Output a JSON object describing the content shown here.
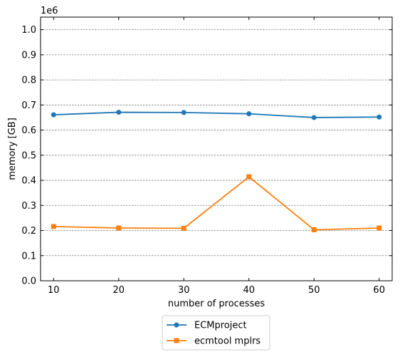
{
  "chart_data": {
    "type": "line",
    "xlabel": "number of processes",
    "ylabel": "memory [GB]",
    "y_offset_label": "1e6",
    "x": [
      10,
      20,
      30,
      40,
      50,
      60
    ],
    "xticks": [
      "10",
      "20",
      "30",
      "40",
      "50",
      "60"
    ],
    "yticks": [
      "0.0",
      "0.1",
      "0.2",
      "0.3",
      "0.4",
      "0.5",
      "0.6",
      "0.7",
      "0.8",
      "0.9",
      "1.0"
    ],
    "xlim": [
      8,
      62
    ],
    "ylim": [
      0,
      1050000
    ],
    "grid": "horizontal-dashed",
    "legend_position": "below",
    "series": [
      {
        "name": "ECMproject",
        "color": "#1f77b4",
        "marker": "circle",
        "values": [
          661000,
          671000,
          670000,
          665000,
          650000,
          652000
        ]
      },
      {
        "name": "ecmtool mplrs",
        "color": "#ff7f0e",
        "marker": "square",
        "values": [
          216000,
          210000,
          209000,
          414000,
          203000,
          210000
        ]
      }
    ]
  }
}
